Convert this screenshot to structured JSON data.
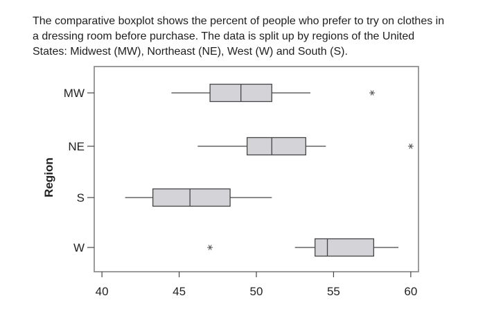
{
  "question": {
    "lines": [
      "The comparative boxplot shows the percent of people who prefer to try on clothes in",
      "a dressing room before purchase.  The data is split up by regions of the United",
      "States: Midwest (MW), Northeast (NE), West (W) and South (S)."
    ]
  },
  "chart_data": {
    "type": "boxplot",
    "orientation": "horizontal",
    "xlabel": "",
    "ylabel": "Region",
    "xlim": [
      39.5,
      60.5
    ],
    "xticks": [
      40,
      45,
      50,
      55,
      60
    ],
    "categories": [
      "MW",
      "NE",
      "S",
      "W"
    ],
    "series": [
      {
        "category": "MW",
        "whisker_low": 44.5,
        "q1": 47.0,
        "median": 49.0,
        "q3": 51.0,
        "whisker_high": 53.5,
        "outliers": [
          57.5
        ]
      },
      {
        "category": "NE",
        "whisker_low": 46.2,
        "q1": 49.4,
        "median": 51.0,
        "q3": 53.2,
        "whisker_high": 54.5,
        "outliers": [
          60.0
        ]
      },
      {
        "category": "S",
        "whisker_low": 41.5,
        "q1": 43.3,
        "median": 45.7,
        "q3": 48.3,
        "whisker_high": 51.0,
        "outliers": []
      },
      {
        "category": "W",
        "whisker_low": 52.5,
        "q1": 53.8,
        "median": 54.6,
        "q3": 57.6,
        "whisker_high": 59.2,
        "outliers": [
          47.0
        ]
      }
    ],
    "grid": false,
    "colors": {
      "box_fill": "#d4d4d8",
      "box_stroke": "#444444",
      "plot_frame": "#7a7a7a"
    }
  }
}
